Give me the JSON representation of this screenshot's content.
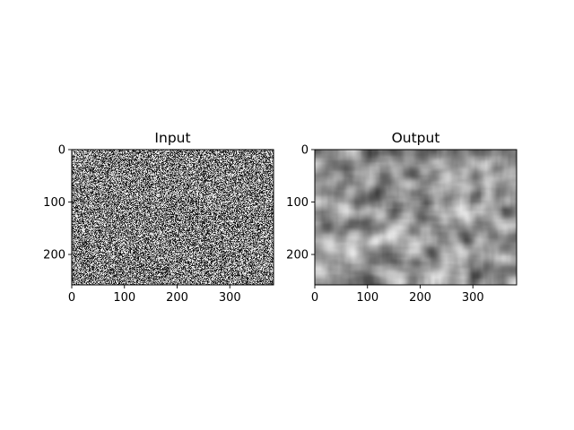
{
  "chart_data": [
    {
      "type": "heatmap",
      "title": "Input",
      "colormap": "gray",
      "texture": "fine per-pixel uniform random noise",
      "image_shape": [
        258,
        383
      ],
      "xlim": [
        0,
        383
      ],
      "ylim": [
        258,
        0
      ],
      "x_ticks": [
        0,
        100,
        200,
        300
      ],
      "y_ticks": [
        0,
        100,
        200
      ],
      "x_tick_labels": [
        "0",
        "100",
        "200",
        "300"
      ],
      "y_tick_labels": [
        "0",
        "100",
        "200"
      ],
      "value_range": [
        0.0,
        1.0
      ],
      "mean_value": 0.5
    },
    {
      "type": "heatmap",
      "title": "Output",
      "colormap": "gray",
      "texture": "smoothed (blurred) version of the input noise, blotchy mid-gray with darker and lighter patches",
      "image_shape": [
        258,
        383
      ],
      "xlim": [
        0,
        383
      ],
      "ylim": [
        258,
        0
      ],
      "x_ticks": [
        0,
        100,
        200,
        300
      ],
      "y_ticks": [
        0,
        100,
        200
      ],
      "x_tick_labels": [
        "0",
        "100",
        "200",
        "300"
      ],
      "y_tick_labels": [
        "0",
        "100",
        "200"
      ],
      "value_range": [
        0.25,
        0.9
      ],
      "mean_value": 0.6
    }
  ]
}
